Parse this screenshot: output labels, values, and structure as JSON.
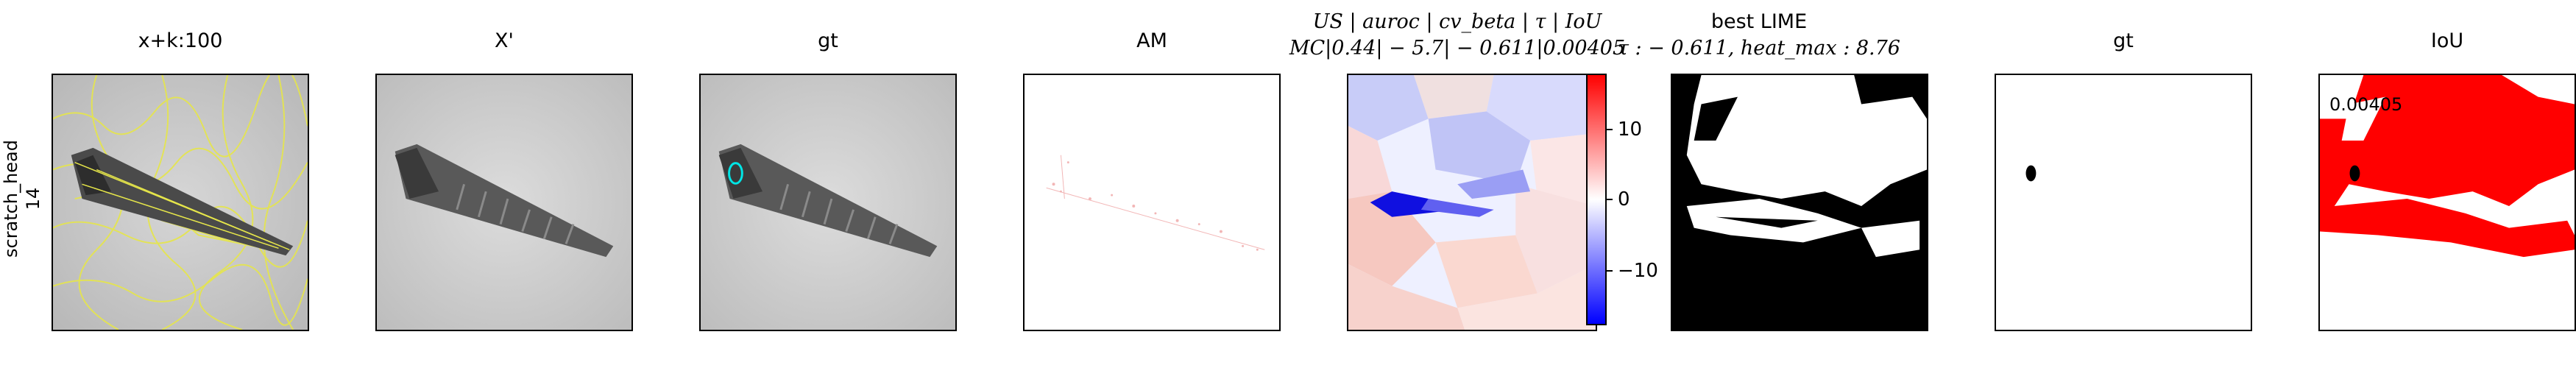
{
  "row_label": {
    "line1": "scratch_head",
    "line2": "14"
  },
  "panels": [
    {
      "title": "x+k:100"
    },
    {
      "title": "X'"
    },
    {
      "title": "gt"
    },
    {
      "title": "AM"
    },
    {
      "title_line1": "US | auroc | cv_beta | τ | IoU",
      "title_line2": "MC|0.44| − 5.7| − 0.611|0.00405"
    },
    {
      "title_line1": "best LIME",
      "title_line2": "τ : − 0.611, heat_max : 8.76"
    },
    {
      "title": "gt"
    },
    {
      "title": "IoU",
      "annotation": "0.00405"
    }
  ],
  "colorbar": {
    "ticks": [
      {
        "label": "10",
        "value": 10
      },
      {
        "label": "0",
        "value": 0
      },
      {
        "label": "−10",
        "value": -10
      }
    ],
    "range": [
      -16,
      16
    ],
    "colors": {
      "high": "#ff0000",
      "mid": "#ffffff",
      "low": "#0000ff"
    }
  }
}
